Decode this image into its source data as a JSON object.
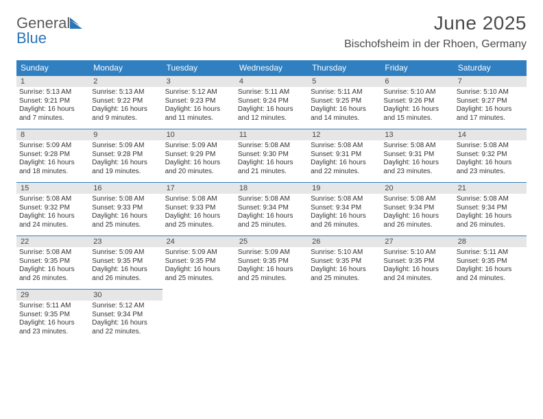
{
  "brand": {
    "part1": "General",
    "part2": "Blue"
  },
  "title": "June 2025",
  "location": "Bischofsheim in der Rhoen, Germany",
  "colors": {
    "header_blue": "#2f7fc1",
    "daynum_bg": "#e6e6e6",
    "text": "#333333",
    "rule": "#2f7fc1"
  },
  "weekdays": [
    "Sunday",
    "Monday",
    "Tuesday",
    "Wednesday",
    "Thursday",
    "Friday",
    "Saturday"
  ],
  "weeks": [
    [
      {
        "n": "1",
        "l1": "Sunrise: 5:13 AM",
        "l2": "Sunset: 9:21 PM",
        "l3": "Daylight: 16 hours",
        "l4": "and 7 minutes."
      },
      {
        "n": "2",
        "l1": "Sunrise: 5:13 AM",
        "l2": "Sunset: 9:22 PM",
        "l3": "Daylight: 16 hours",
        "l4": "and 9 minutes."
      },
      {
        "n": "3",
        "l1": "Sunrise: 5:12 AM",
        "l2": "Sunset: 9:23 PM",
        "l3": "Daylight: 16 hours",
        "l4": "and 11 minutes."
      },
      {
        "n": "4",
        "l1": "Sunrise: 5:11 AM",
        "l2": "Sunset: 9:24 PM",
        "l3": "Daylight: 16 hours",
        "l4": "and 12 minutes."
      },
      {
        "n": "5",
        "l1": "Sunrise: 5:11 AM",
        "l2": "Sunset: 9:25 PM",
        "l3": "Daylight: 16 hours",
        "l4": "and 14 minutes."
      },
      {
        "n": "6",
        "l1": "Sunrise: 5:10 AM",
        "l2": "Sunset: 9:26 PM",
        "l3": "Daylight: 16 hours",
        "l4": "and 15 minutes."
      },
      {
        "n": "7",
        "l1": "Sunrise: 5:10 AM",
        "l2": "Sunset: 9:27 PM",
        "l3": "Daylight: 16 hours",
        "l4": "and 17 minutes."
      }
    ],
    [
      {
        "n": "8",
        "l1": "Sunrise: 5:09 AM",
        "l2": "Sunset: 9:28 PM",
        "l3": "Daylight: 16 hours",
        "l4": "and 18 minutes."
      },
      {
        "n": "9",
        "l1": "Sunrise: 5:09 AM",
        "l2": "Sunset: 9:28 PM",
        "l3": "Daylight: 16 hours",
        "l4": "and 19 minutes."
      },
      {
        "n": "10",
        "l1": "Sunrise: 5:09 AM",
        "l2": "Sunset: 9:29 PM",
        "l3": "Daylight: 16 hours",
        "l4": "and 20 minutes."
      },
      {
        "n": "11",
        "l1": "Sunrise: 5:08 AM",
        "l2": "Sunset: 9:30 PM",
        "l3": "Daylight: 16 hours",
        "l4": "and 21 minutes."
      },
      {
        "n": "12",
        "l1": "Sunrise: 5:08 AM",
        "l2": "Sunset: 9:31 PM",
        "l3": "Daylight: 16 hours",
        "l4": "and 22 minutes."
      },
      {
        "n": "13",
        "l1": "Sunrise: 5:08 AM",
        "l2": "Sunset: 9:31 PM",
        "l3": "Daylight: 16 hours",
        "l4": "and 23 minutes."
      },
      {
        "n": "14",
        "l1": "Sunrise: 5:08 AM",
        "l2": "Sunset: 9:32 PM",
        "l3": "Daylight: 16 hours",
        "l4": "and 23 minutes."
      }
    ],
    [
      {
        "n": "15",
        "l1": "Sunrise: 5:08 AM",
        "l2": "Sunset: 9:32 PM",
        "l3": "Daylight: 16 hours",
        "l4": "and 24 minutes."
      },
      {
        "n": "16",
        "l1": "Sunrise: 5:08 AM",
        "l2": "Sunset: 9:33 PM",
        "l3": "Daylight: 16 hours",
        "l4": "and 25 minutes."
      },
      {
        "n": "17",
        "l1": "Sunrise: 5:08 AM",
        "l2": "Sunset: 9:33 PM",
        "l3": "Daylight: 16 hours",
        "l4": "and 25 minutes."
      },
      {
        "n": "18",
        "l1": "Sunrise: 5:08 AM",
        "l2": "Sunset: 9:34 PM",
        "l3": "Daylight: 16 hours",
        "l4": "and 25 minutes."
      },
      {
        "n": "19",
        "l1": "Sunrise: 5:08 AM",
        "l2": "Sunset: 9:34 PM",
        "l3": "Daylight: 16 hours",
        "l4": "and 26 minutes."
      },
      {
        "n": "20",
        "l1": "Sunrise: 5:08 AM",
        "l2": "Sunset: 9:34 PM",
        "l3": "Daylight: 16 hours",
        "l4": "and 26 minutes."
      },
      {
        "n": "21",
        "l1": "Sunrise: 5:08 AM",
        "l2": "Sunset: 9:34 PM",
        "l3": "Daylight: 16 hours",
        "l4": "and 26 minutes."
      }
    ],
    [
      {
        "n": "22",
        "l1": "Sunrise: 5:08 AM",
        "l2": "Sunset: 9:35 PM",
        "l3": "Daylight: 16 hours",
        "l4": "and 26 minutes."
      },
      {
        "n": "23",
        "l1": "Sunrise: 5:09 AM",
        "l2": "Sunset: 9:35 PM",
        "l3": "Daylight: 16 hours",
        "l4": "and 26 minutes."
      },
      {
        "n": "24",
        "l1": "Sunrise: 5:09 AM",
        "l2": "Sunset: 9:35 PM",
        "l3": "Daylight: 16 hours",
        "l4": "and 25 minutes."
      },
      {
        "n": "25",
        "l1": "Sunrise: 5:09 AM",
        "l2": "Sunset: 9:35 PM",
        "l3": "Daylight: 16 hours",
        "l4": "and 25 minutes."
      },
      {
        "n": "26",
        "l1": "Sunrise: 5:10 AM",
        "l2": "Sunset: 9:35 PM",
        "l3": "Daylight: 16 hours",
        "l4": "and 25 minutes."
      },
      {
        "n": "27",
        "l1": "Sunrise: 5:10 AM",
        "l2": "Sunset: 9:35 PM",
        "l3": "Daylight: 16 hours",
        "l4": "and 24 minutes."
      },
      {
        "n": "28",
        "l1": "Sunrise: 5:11 AM",
        "l2": "Sunset: 9:35 PM",
        "l3": "Daylight: 16 hours",
        "l4": "and 24 minutes."
      }
    ],
    [
      {
        "n": "29",
        "l1": "Sunrise: 5:11 AM",
        "l2": "Sunset: 9:35 PM",
        "l3": "Daylight: 16 hours",
        "l4": "and 23 minutes."
      },
      {
        "n": "30",
        "l1": "Sunrise: 5:12 AM",
        "l2": "Sunset: 9:34 PM",
        "l3": "Daylight: 16 hours",
        "l4": "and 22 minutes."
      },
      null,
      null,
      null,
      null,
      null
    ]
  ]
}
